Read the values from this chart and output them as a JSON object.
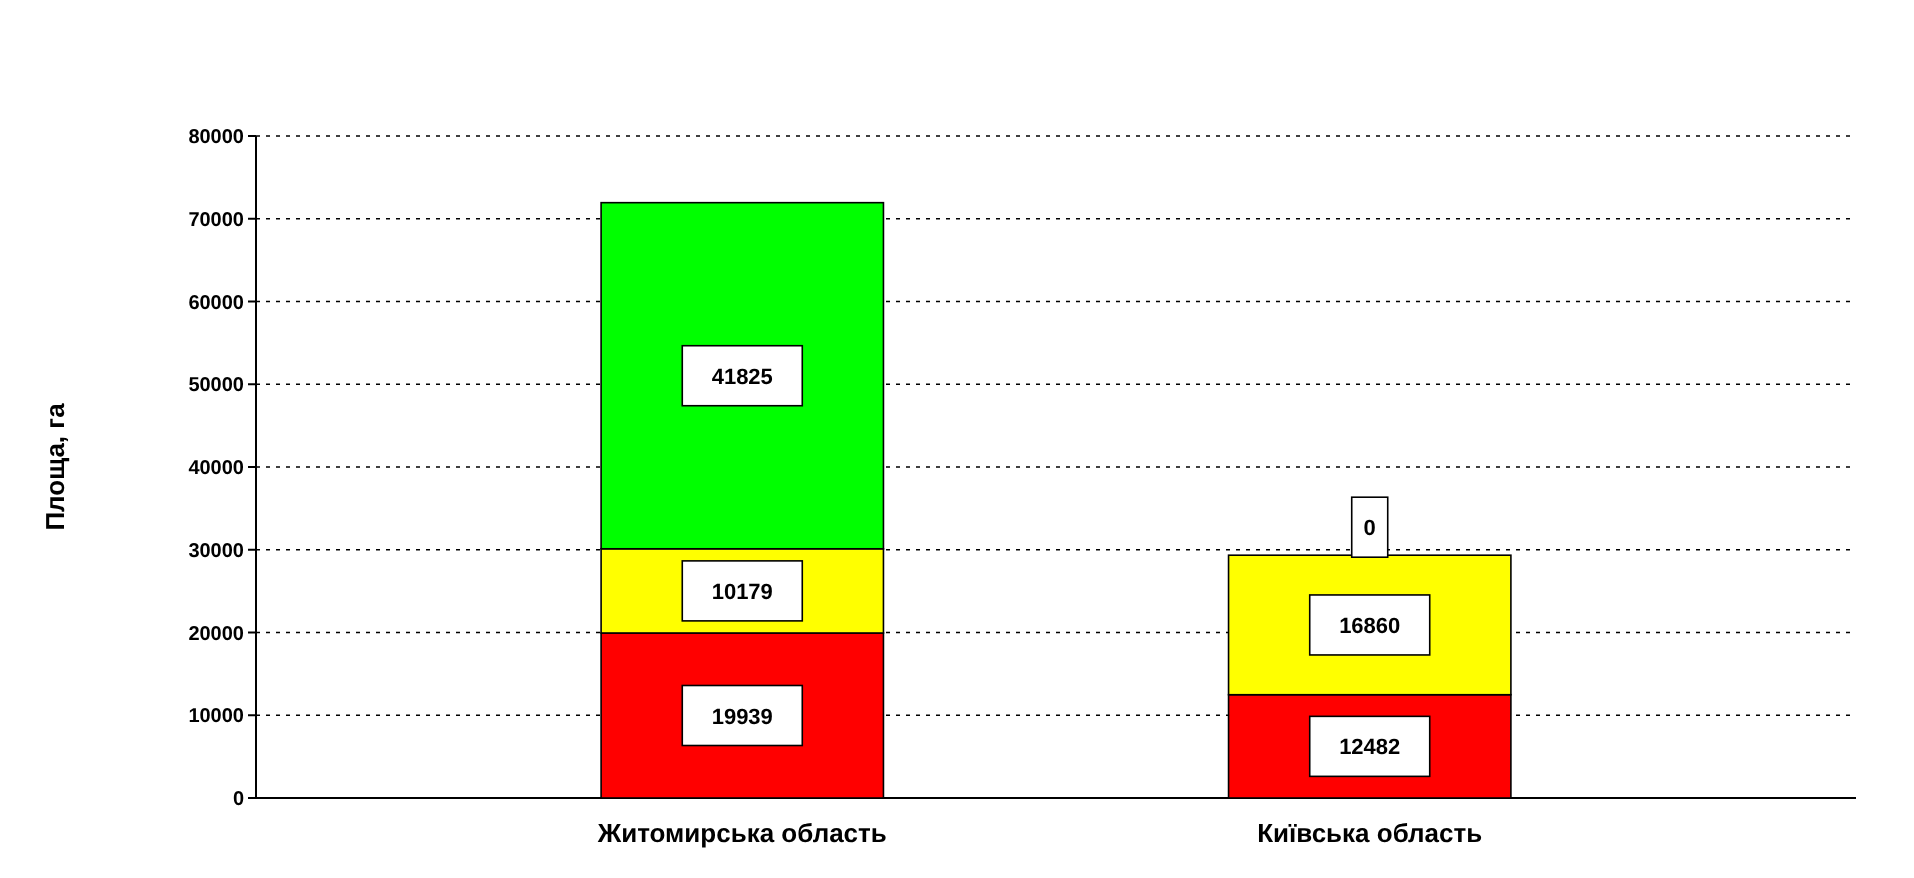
{
  "chart_data": {
    "type": "bar",
    "stacked": true,
    "ylabel": "Площа, га",
    "categories": [
      "Житомирська область",
      "Київська область"
    ],
    "series": [
      {
        "color": "#ff0000",
        "values": [
          19939,
          12482
        ]
      },
      {
        "color": "#ffff00",
        "values": [
          10179,
          16860
        ]
      },
      {
        "color": "#00ff00",
        "values": [
          41825,
          0
        ]
      }
    ],
    "ylim": [
      0,
      80000
    ],
    "yticks": [
      0,
      10000,
      20000,
      30000,
      40000,
      50000,
      60000,
      70000,
      80000
    ],
    "grid": "y",
    "data_labels": true
  }
}
